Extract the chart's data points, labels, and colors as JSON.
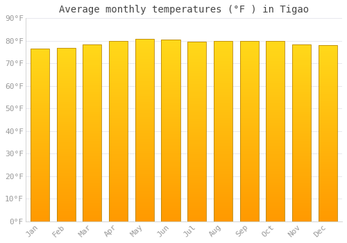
{
  "title": "Average monthly temperatures (°F ) in Tigao",
  "months": [
    "Jan",
    "Feb",
    "Mar",
    "Apr",
    "May",
    "Jun",
    "Jul",
    "Aug",
    "Sep",
    "Oct",
    "Nov",
    "Dec"
  ],
  "values": [
    76.5,
    77.0,
    78.5,
    80.0,
    81.0,
    80.5,
    79.5,
    80.0,
    80.0,
    80.0,
    78.5,
    78.0
  ],
  "ylim": [
    0,
    90
  ],
  "yticks": [
    0,
    10,
    20,
    30,
    40,
    50,
    60,
    70,
    80,
    90
  ],
  "ytick_labels": [
    "0°F",
    "10°F",
    "20°F",
    "30°F",
    "40°F",
    "50°F",
    "60°F",
    "70°F",
    "80°F",
    "90°F"
  ],
  "bar_color_top": "#FFD000",
  "bar_color_bottom": "#FFA000",
  "bar_edge_color": "#B8860B",
  "background_color": "#FFFFFF",
  "grid_color": "#E8E8EE",
  "title_fontsize": 10,
  "tick_fontsize": 8,
  "font_family": "monospace"
}
